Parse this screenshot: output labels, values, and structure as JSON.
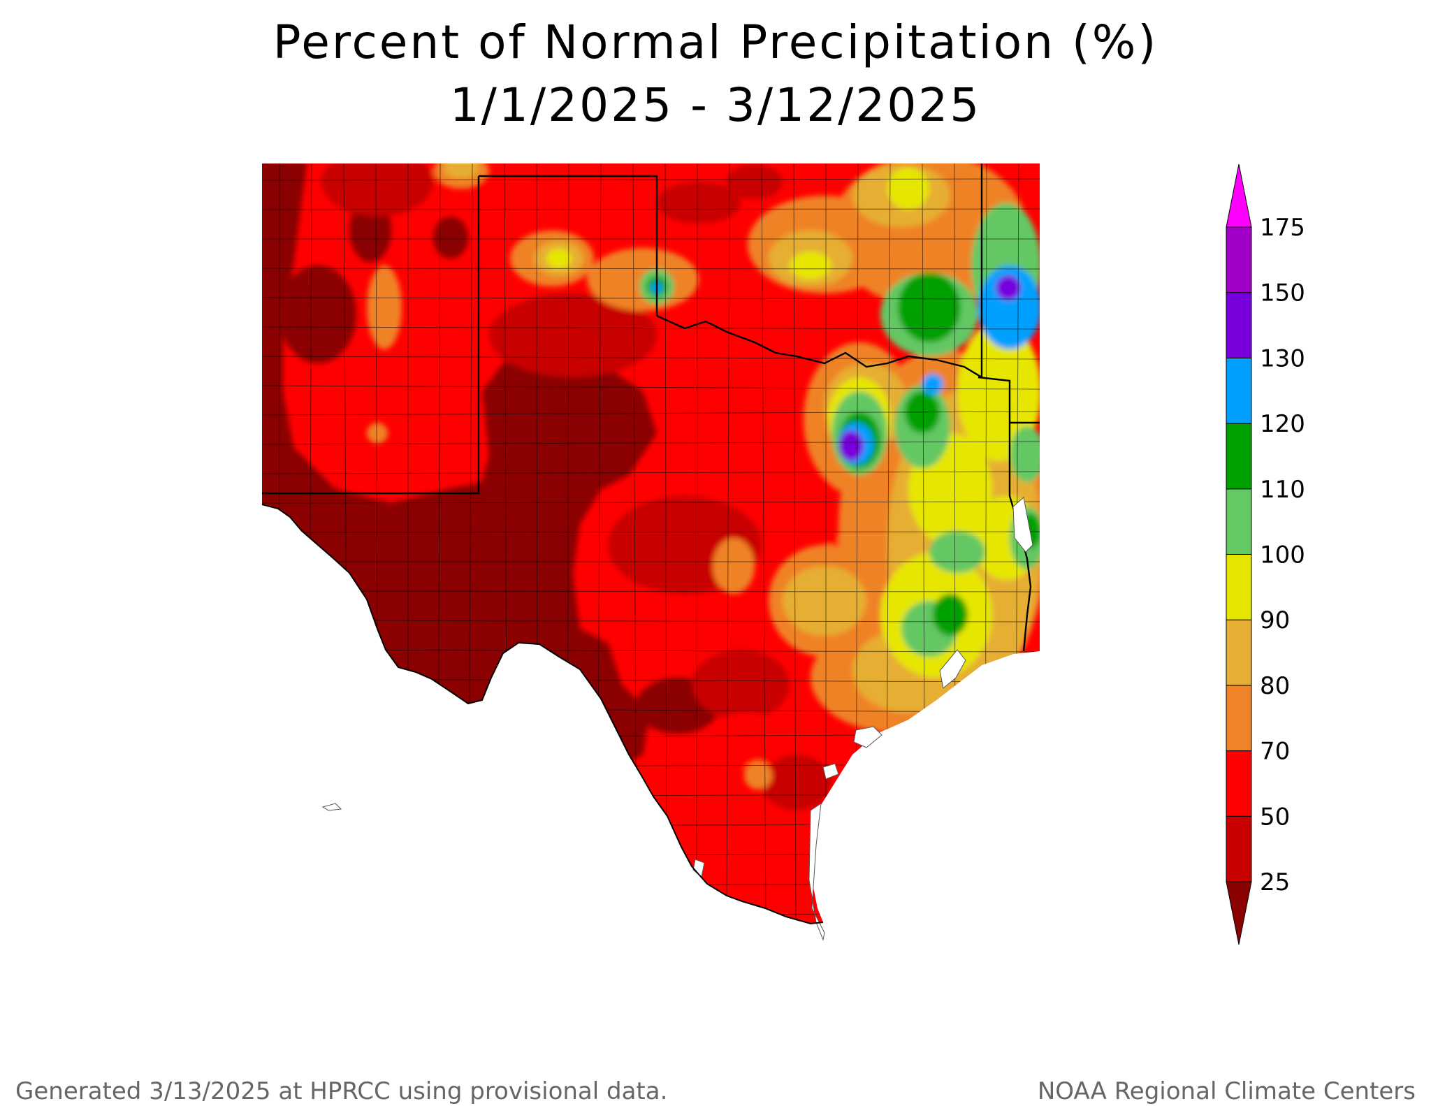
{
  "title": {
    "line1": "Percent of Normal Precipitation (%)",
    "line2": "1/1/2025 - 3/12/2025"
  },
  "legend": {
    "levels": [
      {
        "label": "25",
        "color": "#8b0000"
      },
      {
        "label": "50",
        "color": "#c80000"
      },
      {
        "label": "70",
        "color": "#ff0000"
      },
      {
        "label": "80",
        "color": "#f08228"
      },
      {
        "label": "90",
        "color": "#e6ae32"
      },
      {
        "label": "100",
        "color": "#e6e600"
      },
      {
        "label": "110",
        "color": "#64c864"
      },
      {
        "label": "120",
        "color": "#00a000"
      },
      {
        "label": "130",
        "color": "#00a0ff"
      },
      {
        "label": "150",
        "color": "#7800dc"
      },
      {
        "label": "175",
        "color": "#a000c8"
      }
    ],
    "over_color": "#ff00ff",
    "under_color": "#8b0000"
  },
  "footer": {
    "left": "Generated 3/13/2025 at HPRCC using provisional data.",
    "right": "NOAA Regional Climate Centers"
  }
}
